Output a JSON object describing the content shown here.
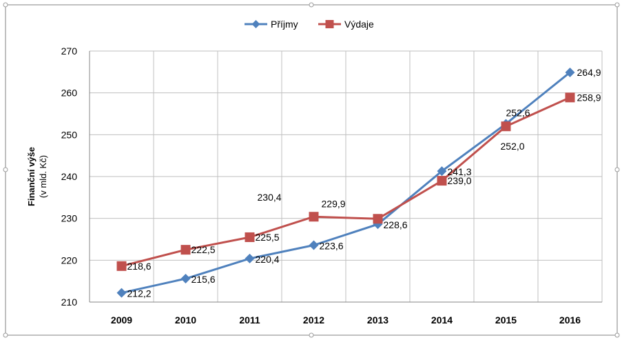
{
  "chart_data": {
    "type": "line",
    "categories": [
      "2009",
      "2010",
      "2011",
      "2012",
      "2013",
      "2014",
      "2015",
      "2016"
    ],
    "series": [
      {
        "name": "Příjmy",
        "values": [
          212.2,
          215.6,
          220.4,
          223.6,
          228.6,
          241.3,
          252.6,
          264.9
        ],
        "labels": [
          "212,2",
          "215,6",
          "220,4",
          "223,6",
          "228,6",
          "241,3",
          "252,6",
          "264,9"
        ],
        "color": "#4F81BD",
        "marker": "diamond"
      },
      {
        "name": "Výdaje",
        "values": [
          218.6,
          222.5,
          225.5,
          230.4,
          229.9,
          239.0,
          252.0,
          258.9
        ],
        "labels": [
          "218,6",
          "222,5",
          "225,5",
          "230,4",
          "229,9",
          "239,0",
          "252,0",
          "258,9"
        ],
        "color": "#C0504D",
        "marker": "square"
      }
    ],
    "ylabel": "Finanční výše",
    "ylabel_sub": "(v mld. Kč)",
    "ylim": [
      210,
      270
    ],
    "yticks": [
      210,
      220,
      230,
      240,
      250,
      260,
      270
    ],
    "grid": true,
    "legend": "top-center"
  },
  "colors": {
    "grid": "#BFBFBF",
    "frame": "#808080",
    "text": "#000000"
  }
}
